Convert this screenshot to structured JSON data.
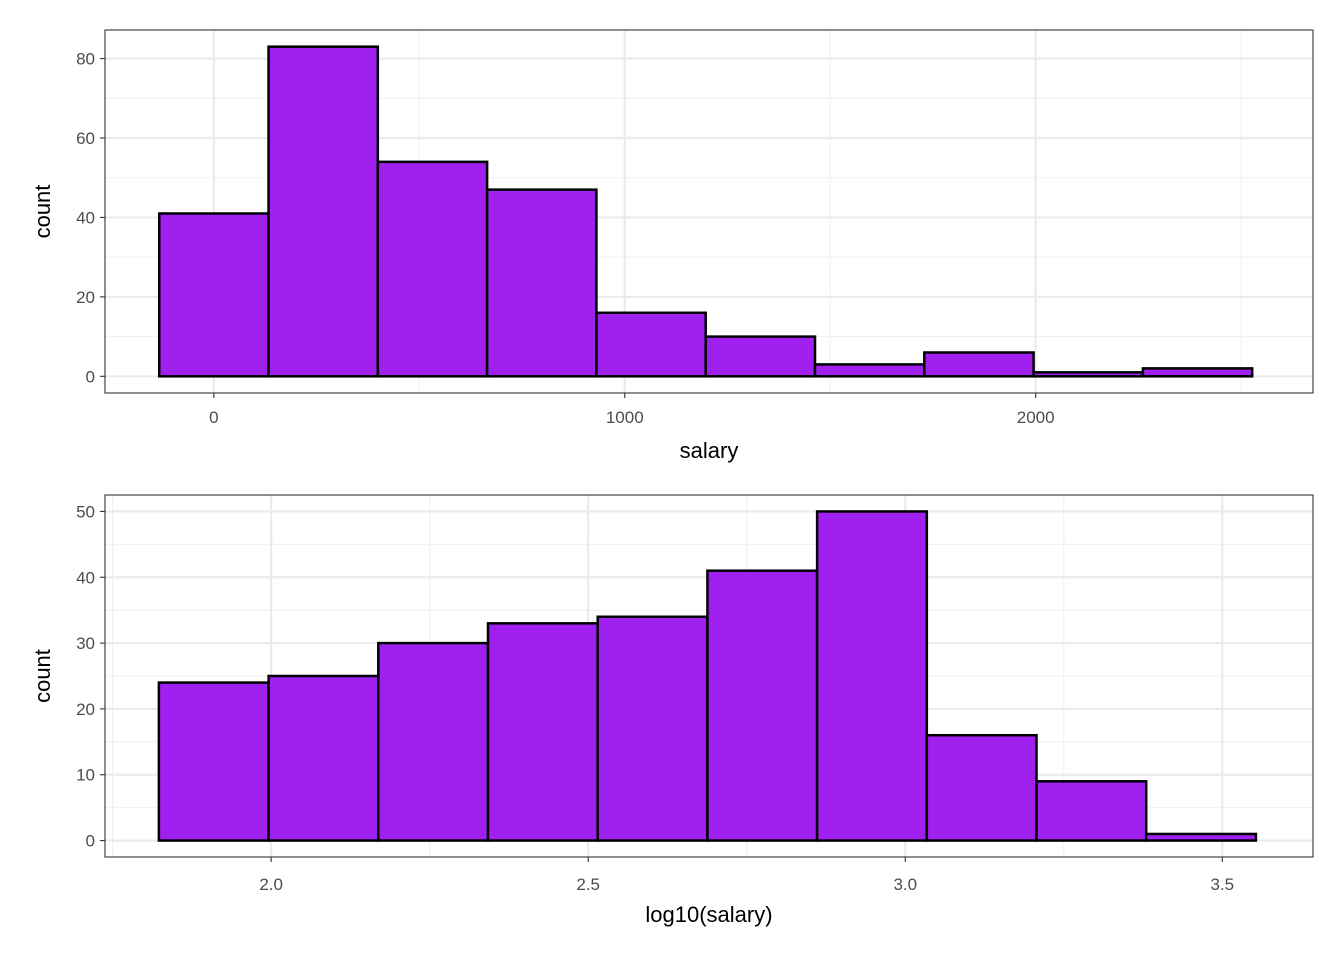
{
  "chart_data": [
    {
      "type": "bar",
      "subtype": "histogram",
      "xlabel": "salary",
      "ylabel": "count",
      "x_ticks": [
        0,
        1000,
        2000
      ],
      "y_ticks": [
        0,
        20,
        40,
        60,
        80
      ],
      "xlim": [
        -265,
        2675
      ],
      "ylim": [
        -4.2,
        87.2
      ],
      "grid": true,
      "bin_edges": [
        -133,
        133,
        399,
        665,
        931,
        1197,
        1463,
        1729,
        1995,
        2261,
        2527
      ],
      "values": [
        41,
        83,
        54,
        47,
        16,
        10,
        3,
        6,
        1,
        2
      ],
      "fill_color": "#A020F0",
      "edge_color": "#000000"
    },
    {
      "type": "bar",
      "subtype": "histogram",
      "xlabel": "log10(salary)",
      "ylabel": "count",
      "x_ticks": [
        2.0,
        2.5,
        3.0,
        3.5
      ],
      "y_ticks": [
        0,
        10,
        20,
        30,
        40,
        50
      ],
      "xlim": [
        1.738,
        3.643
      ],
      "ylim": [
        -2.5,
        52.5
      ],
      "grid": true,
      "bin_edges": [
        1.823,
        1.996,
        2.169,
        2.342,
        2.515,
        2.688,
        2.861,
        3.034,
        3.207,
        3.38,
        3.553
      ],
      "values": [
        24,
        25,
        30,
        33,
        34,
        41,
        50,
        16,
        9,
        1
      ],
      "fill_color": "#A020F0",
      "edge_color": "#000000"
    }
  ]
}
